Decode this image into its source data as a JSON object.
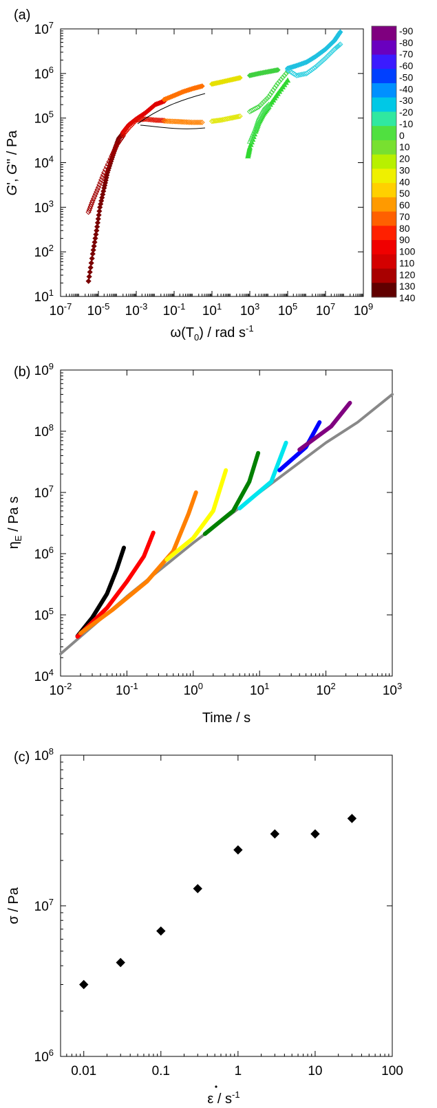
{
  "figure": {
    "panels": [
      {
        "label": "(a)",
        "xlabel": {
          "main": "ω(T",
          "sub": "0",
          "tail": ") / rad s",
          "sup": "-1"
        },
        "ylabel": {
          "g1": "G",
          "sep": "', ",
          "g2": "G",
          "tail": "'' / Pa"
        },
        "colorbar": {
          "ticks": [
            "-90",
            "-80",
            "-70",
            "-60",
            "-50",
            "-40",
            "-30",
            "-20",
            "-10",
            "0",
            "10",
            "20",
            "30",
            "40",
            "50",
            "60",
            "70",
            "80",
            "90",
            "100",
            "110",
            "120",
            "130",
            "140"
          ],
          "colors": [
            "#7f007f",
            "#6a00bf",
            "#3b1bff",
            "#0040ff",
            "#0090ff",
            "#00c8e6",
            "#30e8a0",
            "#50e040",
            "#78e030",
            "#b8f000",
            "#eff000",
            "#ffd000",
            "#ff9a00",
            "#ff6000",
            "#ff2000",
            "#f00000",
            "#d40000",
            "#a80000",
            "#600000"
          ]
        }
      },
      {
        "label": "(b)",
        "xlabel": "Time / s",
        "ylabel": {
          "main": "η",
          "sub": "E",
          "tail": " / Pa s"
        }
      },
      {
        "label": "(c)",
        "xlabel": {
          "main": "ε",
          "tail": " / s",
          "sup": "-1"
        },
        "ylabel": "σ / Pa"
      }
    ]
  },
  "chart_data": [
    {
      "type": "scatter",
      "title": "(a)",
      "xscale": "log",
      "yscale": "log",
      "xlim": [
        1e-07,
        1000000000.0
      ],
      "ylim": [
        10,
        10000000.0
      ],
      "x_ticks": [
        {
          "b": "10",
          "e": "-7"
        },
        {
          "b": "10",
          "e": "-5"
        },
        {
          "b": "10",
          "e": "-3"
        },
        {
          "b": "10",
          "e": "-1"
        },
        {
          "b": "10",
          "e": "1"
        },
        {
          "b": "10",
          "e": "3"
        },
        {
          "b": "10",
          "e": "5"
        },
        {
          "b": "10",
          "e": "7"
        },
        {
          "b": "10",
          "e": "9"
        }
      ],
      "y_ticks": [
        {
          "b": "10",
          "e": "1"
        },
        {
          "b": "10",
          "e": "2"
        },
        {
          "b": "10",
          "e": "3"
        },
        {
          "b": "10",
          "e": "4"
        },
        {
          "b": "10",
          "e": "5"
        },
        {
          "b": "10",
          "e": "6"
        },
        {
          "b": "10",
          "e": "7"
        }
      ],
      "legend": "colorbar-right",
      "series": [
        {
          "marker": "filled-diamond",
          "color": "#7a0000",
          "points": [
            [
              3e-06,
              22
            ],
            [
              5e-06,
              90
            ],
            [
              8e-06,
              300
            ],
            [
              1.2e-05,
              1000
            ],
            [
              2e-05,
              2700
            ],
            [
              3e-05,
              6000
            ],
            [
              5e-05,
              12000.0
            ],
            [
              8e-05,
              22000.0
            ],
            [
              0.00012,
              35000.0
            ],
            [
              0.0002,
              46000.0
            ]
          ]
        },
        {
          "marker": "open-diamond",
          "color": "#a00000",
          "points": [
            [
              3e-06,
              780
            ],
            [
              5e-06,
              1400
            ],
            [
              1e-05,
              2800
            ],
            [
              2e-05,
              6000
            ],
            [
              5e-05,
              14000.0
            ],
            [
              0.0001,
              26000.0
            ],
            [
              0.0002,
              40000.0
            ]
          ]
        },
        {
          "marker": "filled-diamond",
          "color": "#e00000",
          "points": [
            [
              0.0002,
              48000.0
            ],
            [
              0.0004,
              70000.0
            ],
            [
              0.001,
              95000.0
            ],
            [
              0.003,
              130000.0
            ],
            [
              0.01,
              200000.0
            ],
            [
              0.03,
              240000.0
            ]
          ]
        },
        {
          "marker": "open-diamond",
          "color": "#e01000",
          "points": [
            [
              0.0002,
              42000.0
            ],
            [
              0.0004,
              60000.0
            ],
            [
              0.001,
              90000.0
            ],
            [
              0.003,
              95000.0
            ],
            [
              0.01,
              90000.0
            ],
            [
              0.03,
              88000.0
            ]
          ]
        },
        {
          "marker": "filled-diamond",
          "color": "#ff7000",
          "points": [
            [
              0.03,
              260000.0
            ],
            [
              0.1,
              320000.0
            ],
            [
              0.3,
              390000.0
            ],
            [
              1,
              460000.0
            ],
            [
              3,
              520000.0
            ]
          ]
        },
        {
          "marker": "open-diamond",
          "color": "#ff8000",
          "points": [
            [
              0.03,
              86000.0
            ],
            [
              0.1,
              84000.0
            ],
            [
              0.3,
              82000.0
            ],
            [
              1,
              80000.0
            ],
            [
              3,
              80000.0
            ]
          ]
        },
        {
          "marker": "filled-diamond",
          "color": "#e6e000",
          "points": [
            [
              10,
              580000.0
            ],
            [
              30,
              640000.0
            ],
            [
              100,
              720000.0
            ],
            [
              300,
              800000.0
            ]
          ]
        },
        {
          "marker": "open-diamond",
          "color": "#e0e600",
          "points": [
            [
              10,
              85000.0
            ],
            [
              30,
              90000.0
            ],
            [
              100,
              100000.0
            ],
            [
              300,
              110000.0
            ]
          ]
        },
        {
          "marker": "filled-diamond",
          "color": "#40d040",
          "points": [
            [
              1000,
              900000.0
            ],
            [
              3000,
              1000000.0
            ],
            [
              10000.0,
              1100000.0
            ],
            [
              30000.0,
              1200000.0
            ]
          ]
        },
        {
          "marker": "open-diamond",
          "color": "#48d848",
          "points": [
            [
              1000,
              140000.0
            ],
            [
              3000,
              180000.0
            ],
            [
              10000.0,
              300000.0
            ],
            [
              30000.0,
              600000.0
            ],
            [
              100000.0,
              1100000.0
            ]
          ]
        },
        {
          "marker": "filled-triangle",
          "color": "#30d830",
          "points": [
            [
              800,
              14000.0
            ],
            [
              1000,
              22000.0
            ],
            [
              2000,
              50000.0
            ],
            [
              3000,
              80000.0
            ],
            [
              5000,
              120000.0
            ],
            [
              10000.0,
              180000.0
            ],
            [
              30000.0,
              350000.0
            ],
            [
              100000.0,
              700000.0
            ]
          ]
        },
        {
          "marker": "open-triangle",
          "color": "#50e060",
          "points": [
            [
              1000,
              30000.0
            ],
            [
              2000,
              60000.0
            ],
            [
              3000,
              100000.0
            ],
            [
              5000,
              150000.0
            ],
            [
              10000.0,
              200000.0
            ]
          ]
        },
        {
          "marker": "filled-diamond",
          "color": "#20c0e0",
          "points": [
            [
              100000.0,
              1300000.0
            ],
            [
              300000.0,
              1500000.0
            ],
            [
              1000000.0,
              1800000.0
            ],
            [
              3000000.0,
              2400000.0
            ],
            [
              10000000.0,
              3500000.0
            ],
            [
              30000000.0,
              5500000.0
            ],
            [
              60000000.0,
              8500000.0
            ]
          ]
        },
        {
          "marker": "open-diamond",
          "color": "#30d0e0",
          "points": [
            [
              100000.0,
              1200000.0
            ],
            [
              300000.0,
              900000.0
            ],
            [
              1000000.0,
              1000000.0
            ],
            [
              3000000.0,
              1400000.0
            ],
            [
              10000000.0,
              2200000.0
            ],
            [
              30000000.0,
              3500000.0
            ],
            [
              60000000.0,
              4500000.0
            ]
          ]
        }
      ]
    },
    {
      "type": "line",
      "title": "(b)",
      "xscale": "log",
      "yscale": "log",
      "xlim": [
        0.01,
        1000
      ],
      "ylim": [
        10000.0,
        1000000000.0
      ],
      "x_ticks": [
        {
          "b": "10",
          "e": "-2"
        },
        {
          "b": "10",
          "e": "-1"
        },
        {
          "b": "10",
          "e": "0"
        },
        {
          "b": "10",
          "e": "1"
        },
        {
          "b": "10",
          "e": "2"
        },
        {
          "b": "10",
          "e": "3"
        }
      ],
      "y_ticks": [
        {
          "b": "10",
          "e": "4"
        },
        {
          "b": "10",
          "e": "5"
        },
        {
          "b": "10",
          "e": "6"
        },
        {
          "b": "10",
          "e": "7"
        },
        {
          "b": "10",
          "e": "8"
        },
        {
          "b": "10",
          "e": "9"
        }
      ],
      "series": [
        {
          "color": "#888888",
          "points": [
            [
              0.01,
              23000.0
            ],
            [
              0.1,
              200000.0
            ],
            [
              1,
              1500000.0
            ],
            [
              10,
              10000000.0
            ],
            [
              100,
              65000000.0
            ],
            [
              300,
              140000000.0
            ],
            [
              1000,
              400000000.0
            ]
          ]
        },
        {
          "color": "#000000",
          "points": [
            [
              0.018,
              45000.0
            ],
            [
              0.03,
              90000.0
            ],
            [
              0.05,
              220000.0
            ],
            [
              0.07,
              550000.0
            ],
            [
              0.09,
              1250000.0
            ]
          ]
        },
        {
          "color": "#ff0000",
          "points": [
            [
              0.018,
              44000.0
            ],
            [
              0.05,
              130000.0
            ],
            [
              0.1,
              350000.0
            ],
            [
              0.18,
              900000.0
            ],
            [
              0.25,
              2200000.0
            ]
          ]
        },
        {
          "color": "#ff8000",
          "points": [
            [
              0.02,
              50000.0
            ],
            [
              0.06,
              120000.0
            ],
            [
              0.2,
              350000.0
            ],
            [
              0.5,
              1100000.0
            ],
            [
              0.85,
              4500000.0
            ],
            [
              1.1,
              10000000.0
            ]
          ]
        },
        {
          "color": "#ffff00",
          "points": [
            [
              0.4,
              800000.0
            ],
            [
              1,
              1800000.0
            ],
            [
              2,
              5000000.0
            ],
            [
              3.1,
              23000000.0
            ]
          ]
        },
        {
          "color": "#008000",
          "points": [
            [
              1.5,
              2100000.0
            ],
            [
              4,
              5000000.0
            ],
            [
              7,
              15000000.0
            ],
            [
              9.5,
              44000000.0
            ]
          ]
        },
        {
          "color": "#00e5ee",
          "points": [
            [
              5,
              5500000.0
            ],
            [
              15,
              15000000.0
            ],
            [
              25,
              65000000.0
            ]
          ]
        },
        {
          "color": "#0000ff",
          "points": [
            [
              20,
              23000000.0
            ],
            [
              50,
              55000000.0
            ],
            [
              80,
              140000000.0
            ]
          ]
        },
        {
          "color": "#800080",
          "points": [
            [
              40,
              50000000.0
            ],
            [
              120,
              120000000.0
            ],
            [
              230,
              290000000.0
            ]
          ]
        }
      ]
    },
    {
      "type": "scatter",
      "title": "(c)",
      "xscale": "log",
      "yscale": "log",
      "xlim": [
        0.005,
        100
      ],
      "ylim": [
        1000000.0,
        100000000.0
      ],
      "x_ticks": [
        "0.01",
        "0.1",
        "1",
        "10",
        "100"
      ],
      "y_ticks": [
        {
          "b": "10",
          "e": "6"
        },
        {
          "b": "10",
          "e": "7"
        },
        {
          "b": "10",
          "e": "8"
        }
      ],
      "series": [
        {
          "marker": "filled-diamond",
          "color": "#000000",
          "x": [
            0.01,
            0.03,
            0.1,
            0.3,
            1,
            3,
            10,
            30
          ],
          "y": [
            3000000.0,
            4200000.0,
            6800000.0,
            13000000.0,
            23500000.0,
            30000000.0,
            30000000.0,
            38000000.0
          ]
        }
      ]
    }
  ]
}
